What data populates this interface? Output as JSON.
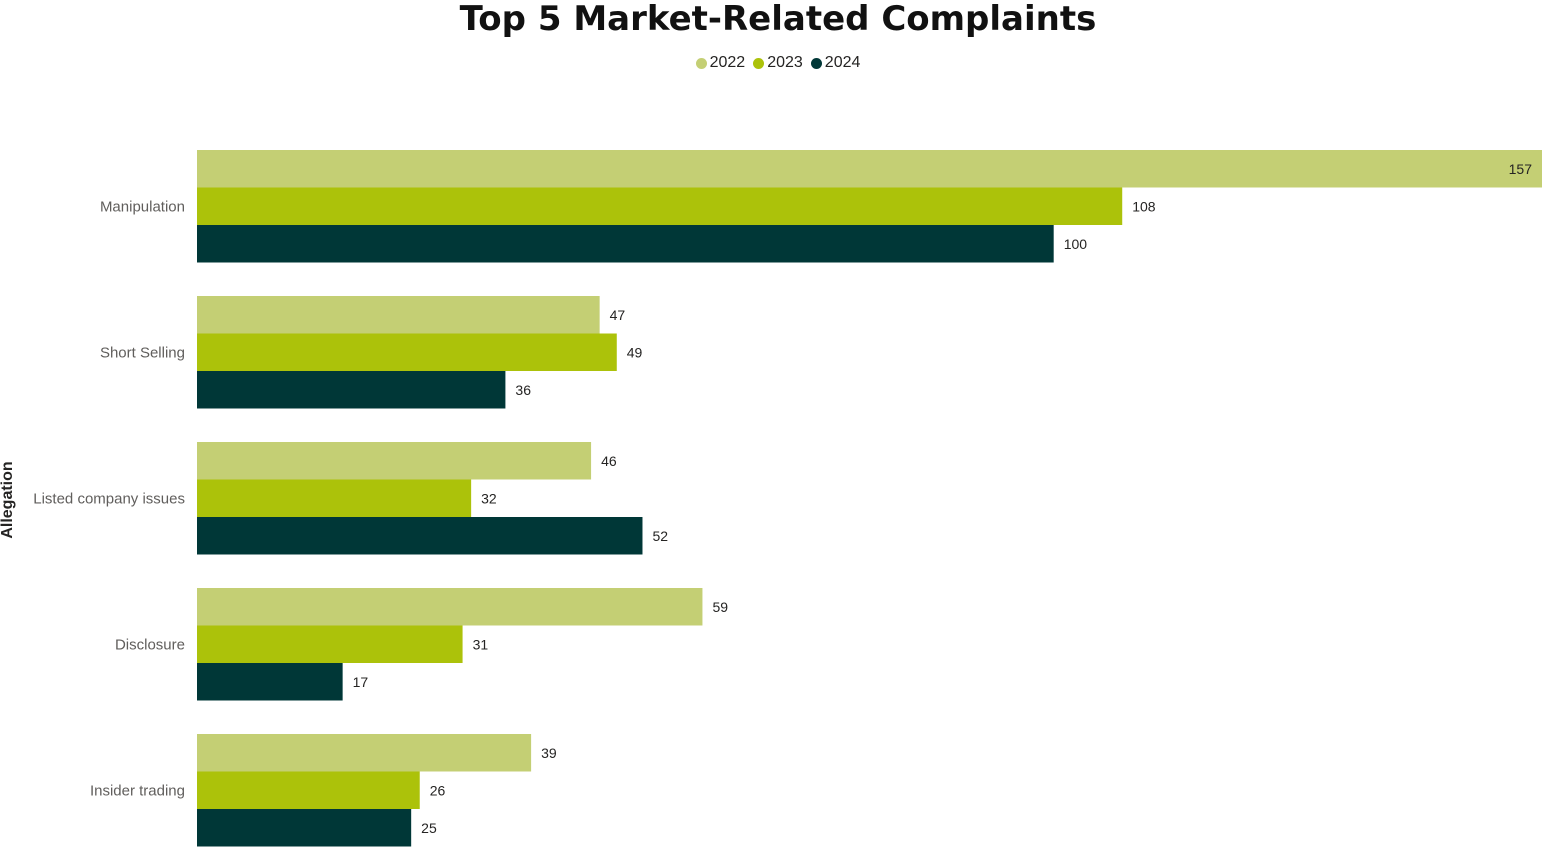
{
  "chart_data": {
    "type": "bar",
    "orientation": "horizontal",
    "title": "Top 5 Market-Related Complaints",
    "ylabel": "Allegation",
    "xlabel": "",
    "legend_position": "top-center",
    "grid": false,
    "xlim": [
      0,
      157
    ],
    "categories": [
      "Manipulation",
      "Short Selling",
      "Listed company issues",
      "Disclosure",
      "Insider trading"
    ],
    "series": [
      {
        "name": "2022",
        "color": "#c4cf74",
        "values": [
          157,
          47,
          46,
          59,
          39
        ]
      },
      {
        "name": "2023",
        "color": "#acc20a",
        "values": [
          108,
          49,
          32,
          31,
          26
        ]
      },
      {
        "name": "2024",
        "color": "#003737",
        "values": [
          100,
          36,
          52,
          17,
          25
        ]
      }
    ]
  }
}
